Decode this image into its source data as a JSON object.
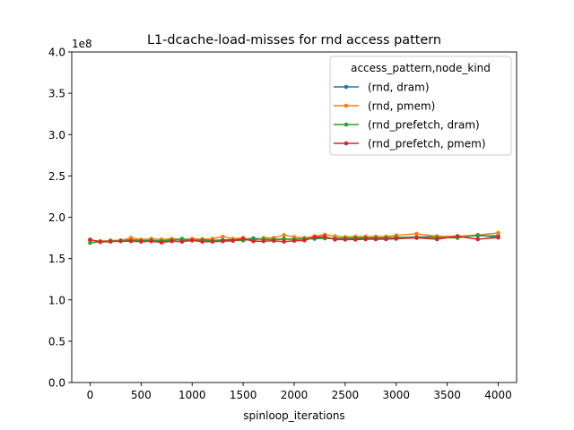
{
  "chart_data": {
    "type": "line",
    "title": "L1-dcache-load-misses for rnd access pattern",
    "xlabel": "spinloop_iterations",
    "ylabel": "",
    "y_offset_label": "1e8",
    "y_scale": 100000000,
    "xlim": [
      -180,
      4180
    ],
    "ylim": [
      0,
      400000000
    ],
    "xticks": [
      0,
      500,
      1000,
      1500,
      2000,
      2500,
      3000,
      3500,
      4000
    ],
    "xtick_labels": [
      "0",
      "500",
      "1000",
      "1500",
      "2000",
      "2500",
      "3000",
      "3500",
      "4000"
    ],
    "yticks": [
      0,
      50000000,
      100000000,
      150000000,
      200000000,
      250000000,
      300000000,
      350000000,
      400000000
    ],
    "ytick_labels": [
      "0.0",
      "0.5",
      "1.0",
      "1.5",
      "2.0",
      "2.5",
      "3.0",
      "3.5",
      "4.0"
    ],
    "grid": false,
    "legend": {
      "title": "access_pattern,node_kind",
      "placement": "upper right"
    },
    "x": [
      0,
      100,
      200,
      300,
      400,
      500,
      600,
      700,
      800,
      900,
      1000,
      1100,
      1200,
      1300,
      1400,
      1500,
      1600,
      1700,
      1800,
      1900,
      2000,
      2100,
      2200,
      2300,
      2400,
      2500,
      2600,
      2700,
      2800,
      2900,
      3000,
      3200,
      3400,
      3600,
      3800,
      4000
    ],
    "series": [
      {
        "name": "(rnd, dram)",
        "color": "#1f77b4",
        "values": [
          172000000,
          171000000,
          171500000,
          172000000,
          172500000,
          172000000,
          171500000,
          172000000,
          173000000,
          172500000,
          173000000,
          172500000,
          172000000,
          172500000,
          173000000,
          173500000,
          174500000,
          173500000,
          173000000,
          173500000,
          173500000,
          174000000,
          174000000,
          174500000,
          174500000,
          174500000,
          174500000,
          175000000,
          174500000,
          175000000,
          175500000,
          176000000,
          176500000,
          177000000,
          177500000,
          177500000
        ]
      },
      {
        "name": "(rnd, pmem)",
        "color": "#ff7f0e",
        "values": [
          172000000,
          171000000,
          172000000,
          172000000,
          175000000,
          173000000,
          174000000,
          173000000,
          174000000,
          173000000,
          174000000,
          173500000,
          174000000,
          176500000,
          174000000,
          175000000,
          172000000,
          175000000,
          175000000,
          178500000,
          176000000,
          175000000,
          177000000,
          179000000,
          177000000,
          176000000,
          176500000,
          176500000,
          176500000,
          176500000,
          178000000,
          180000000,
          177000000,
          177000000,
          178500000,
          181000000
        ]
      },
      {
        "name": "(rnd_prefetch, dram)",
        "color": "#2ca02c",
        "values": [
          169000000,
          170500000,
          171000000,
          171500000,
          171500000,
          171500000,
          172000000,
          171000000,
          172000000,
          174000000,
          172000000,
          172500000,
          171500000,
          171000000,
          172000000,
          172000000,
          174000000,
          173000000,
          173000000,
          174000000,
          173000000,
          174000000,
          175000000,
          174500000,
          174000000,
          174500000,
          175000000,
          175000000,
          175000000,
          175000000,
          175500000,
          175500000,
          175500000,
          175000000,
          178500000,
          175500000
        ]
      },
      {
        "name": "(rnd_prefetch, pmem)",
        "color": "#d62728",
        "values": [
          173000000,
          170000000,
          170500000,
          171000000,
          171000000,
          170500000,
          171000000,
          169500000,
          171000000,
          170500000,
          172000000,
          170500000,
          170500000,
          171000000,
          171500000,
          174000000,
          171000000,
          171000000,
          171500000,
          170500000,
          171500000,
          172000000,
          176000000,
          176500000,
          173000000,
          173000000,
          173000000,
          173500000,
          173500000,
          173500000,
          174000000,
          175000000,
          173500000,
          177000000,
          173500000,
          175500000
        ]
      }
    ]
  }
}
